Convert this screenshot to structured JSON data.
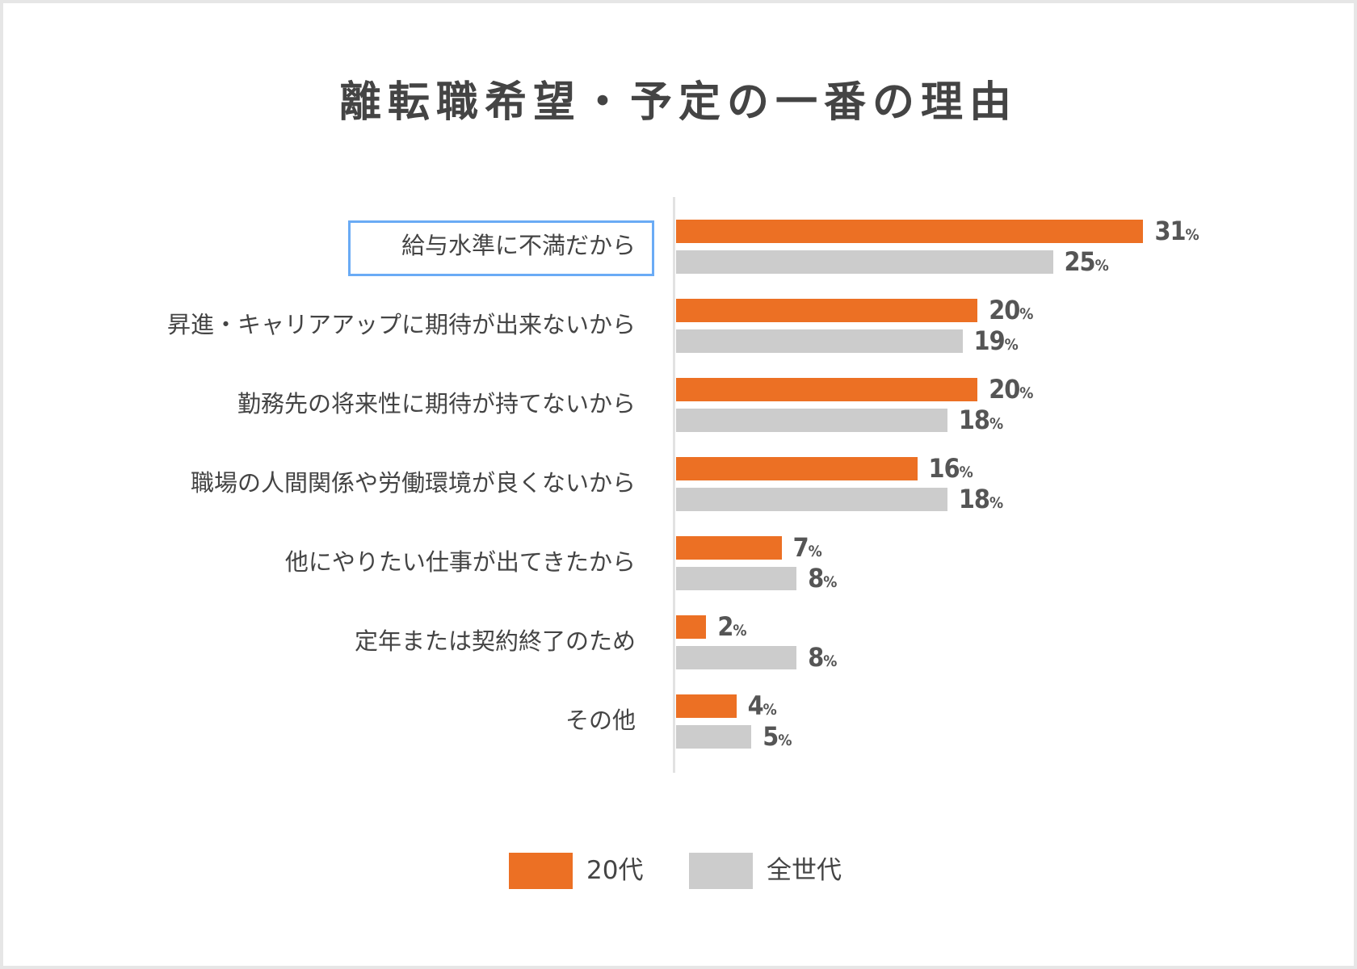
{
  "colors": {
    "series_20s": "#ec7024",
    "series_all": "#cccccc",
    "highlight": "#6aabf5"
  },
  "chart_data": {
    "type": "bar",
    "orientation": "horizontal",
    "title": "離転職希望・予定の一番の理由",
    "categories": [
      "給与水準に不満だから",
      "昇進・キャリアアップに期待が出来ないから",
      "勤務先の将来性に期待が持てないから",
      "職場の人間関係や労働環境が良くないから",
      "他にやりたい仕事が出てきたから",
      "定年または契約終了のため",
      "その他"
    ],
    "highlighted_category": "給与水準に不満だから",
    "series": [
      {
        "name": "20代",
        "values": [
          31,
          20,
          20,
          16,
          7,
          2,
          4
        ]
      },
      {
        "name": "全世代",
        "values": [
          25,
          19,
          18,
          18,
          8,
          8,
          5
        ]
      }
    ],
    "unit": "%",
    "xlim": [
      0,
      40
    ],
    "grid": false,
    "legend": "bottom"
  }
}
